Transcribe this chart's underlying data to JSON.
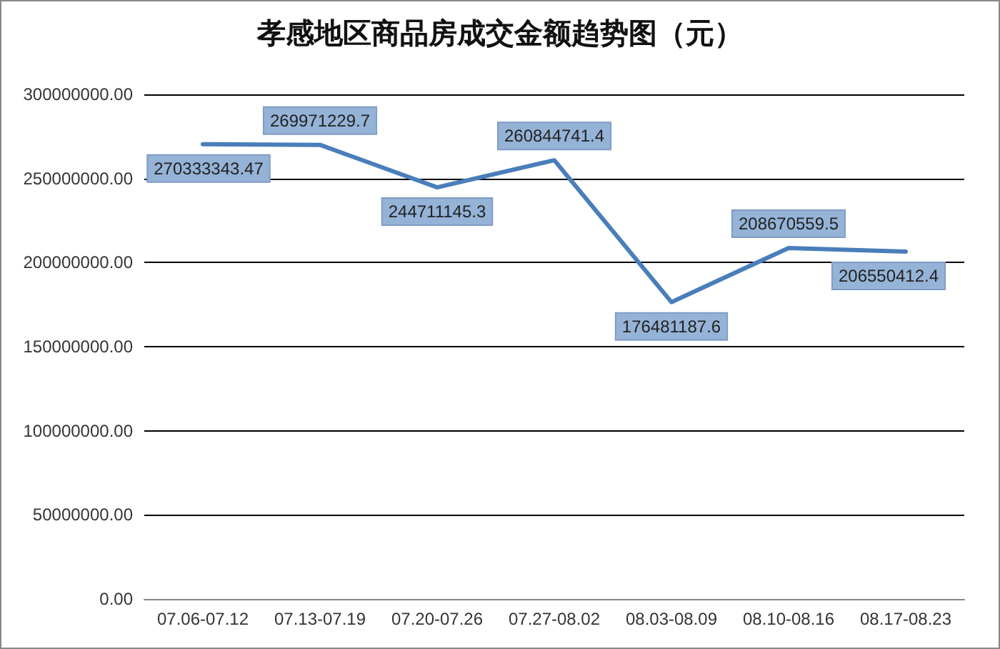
{
  "chart_data": {
    "type": "line",
    "title": "孝感地区商品房成交金额趋势图（元）",
    "categories": [
      "07.06-07.12",
      "07.13-07.19",
      "07.20-07.26",
      "07.27-08.02",
      "08.03-08.09",
      "08.10-08.16",
      "08.17-08.23"
    ],
    "series": [
      {
        "color": "#4a7ebb",
        "values": [
          270333343.47,
          269971229.7,
          244711145.3,
          260844741.4,
          176481187.6,
          208670559.5,
          206550412.4
        ]
      }
    ],
    "ylim": [
      0,
      300000000
    ],
    "yticks": [
      {
        "value": 0,
        "label": "0.00"
      },
      {
        "value": 50000000,
        "label": "50000000.00"
      },
      {
        "value": 100000000,
        "label": "100000000.00"
      },
      {
        "value": 150000000,
        "label": "150000000.00"
      },
      {
        "value": 200000000,
        "label": "200000000.00"
      },
      {
        "value": 250000000,
        "label": "250000000.00"
      },
      {
        "value": 300000000,
        "label": "300000000.00"
      }
    ],
    "grid": "y",
    "marker": "none",
    "line_style": "solid",
    "data_labels": true
  }
}
